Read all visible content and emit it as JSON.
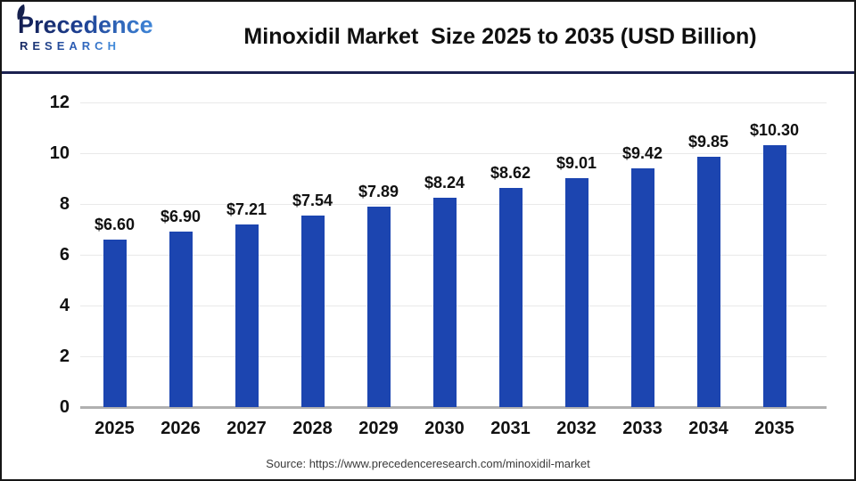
{
  "header": {
    "logo": {
      "line1": "Precedence",
      "line2": "RESEARCH",
      "leaf_icon": "leaf-icon"
    },
    "title": "Minoxidil Market  Size 2025 to 2035 (USD Billion)"
  },
  "chart_data": {
    "type": "bar",
    "title": "Minoxidil Market Size 2025 to 2035 (USD Billion)",
    "categories": [
      "2025",
      "2026",
      "2027",
      "2028",
      "2029",
      "2030",
      "2031",
      "2032",
      "2033",
      "2034",
      "2035"
    ],
    "values": [
      6.6,
      6.9,
      7.21,
      7.54,
      7.89,
      8.24,
      8.62,
      9.01,
      9.42,
      9.85,
      10.3
    ],
    "value_labels": [
      "$6.60",
      "$6.90",
      "$7.21",
      "$7.54",
      "$7.89",
      "$8.24",
      "$8.62",
      "$9.01",
      "$9.42",
      "$9.85",
      "$10.30"
    ],
    "xlabel": "",
    "ylabel": "",
    "ylim": [
      0,
      12
    ],
    "yticks": [
      0,
      2,
      4,
      6,
      8,
      10,
      12
    ],
    "grid": true,
    "legend": "none",
    "bar_color": "#1c45b0",
    "gridline_color": "#e9e9e9",
    "axis_line_color": "#b0b0b0",
    "label_color": "#111111"
  },
  "footer": {
    "source": "Source: https://www.precedenceresearch.com/minoxidil-market"
  }
}
